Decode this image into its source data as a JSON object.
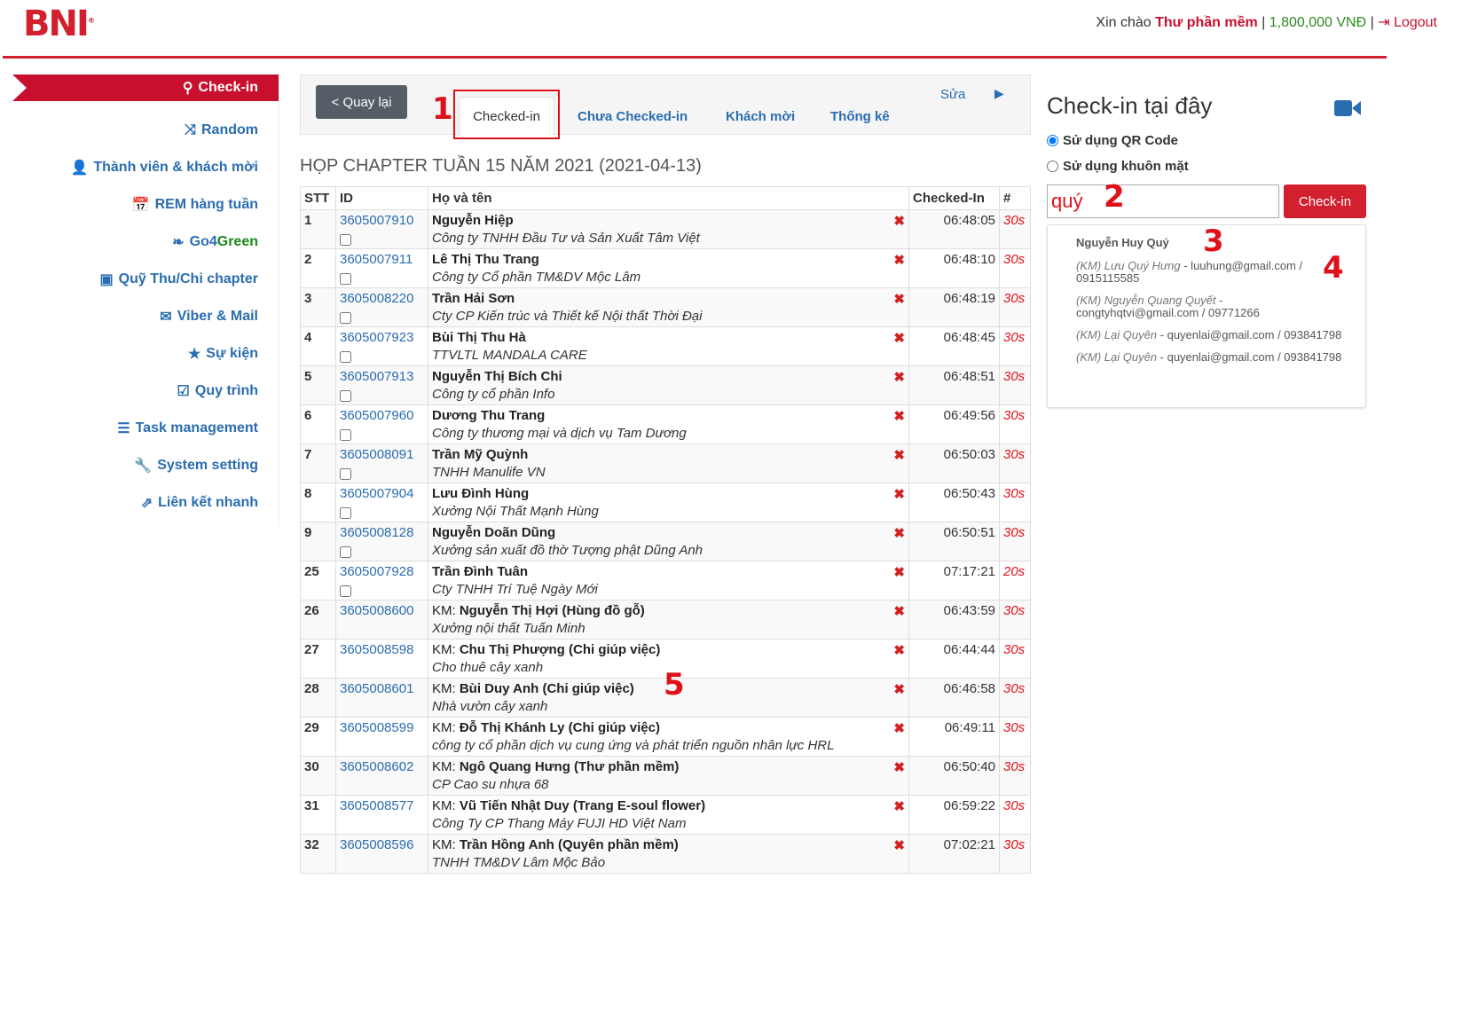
{
  "header": {
    "logo": "BNI",
    "greeting": "Xin chào ",
    "user": "Thư phần mềm",
    "balance": "1,800,000 VNĐ",
    "logout": "Logout"
  },
  "sidebar": {
    "items": [
      {
        "label": "Check-in",
        "icon": "map-marker-icon",
        "active": true
      },
      {
        "label": "Random",
        "icon": "shuffle-icon"
      },
      {
        "label": "Thành viên & khách mời",
        "icon": "user-icon"
      },
      {
        "label": "REM hàng tuần",
        "icon": "calendar-icon"
      },
      {
        "label": "Go4",
        "label2": "Green",
        "icon": "leaf-icon"
      },
      {
        "label": "Quỹ Thu/Chi chapter",
        "icon": "money-icon"
      },
      {
        "label": "Viber & Mail",
        "icon": "envelope-icon"
      },
      {
        "label": "Sự kiện",
        "icon": "star-icon"
      },
      {
        "label": "Quy trình",
        "icon": "check-square-icon"
      },
      {
        "label": "Task management",
        "icon": "tasks-icon"
      },
      {
        "label": "System setting",
        "icon": "wrench-icon"
      },
      {
        "label": "Liên kết nhanh",
        "icon": "external-link-icon"
      }
    ]
  },
  "toolbar": {
    "back": "< Quay lại",
    "tabs": [
      "Checked-in",
      "Chưa Checked-in",
      "Khách mời",
      "Thống kê"
    ],
    "edit": "Sửa"
  },
  "annotations": [
    "1",
    "2",
    "3",
    "4",
    "5"
  ],
  "meeting_title": "HỌP CHAPTER TUẦN 15 NĂM 2021 (2021-04-13)",
  "table": {
    "headers": [
      "STT",
      "ID",
      "Họ và tên",
      "Checked-In",
      "#"
    ],
    "rows": [
      {
        "stt": "1",
        "id": "3605007910",
        "name": "Nguyễn Hiệp",
        "company": "Công ty TNHH Đầu Tư và Sản Xuất Tâm Việt",
        "time": "06:48:05",
        "dur": "30s"
      },
      {
        "stt": "2",
        "id": "3605007911",
        "name": "Lê Thị Thu Trang",
        "company": "Công ty Cổ phần TM&DV Mộc Lâm",
        "time": "06:48:10",
        "dur": "30s"
      },
      {
        "stt": "3",
        "id": "3605008220",
        "name": "Trần Hải Sơn",
        "company": "Cty CP Kiến trúc và Thiết kế Nội thất Thời Đại",
        "time": "06:48:19",
        "dur": "30s"
      },
      {
        "stt": "4",
        "id": "3605007923",
        "name": "Bùi Thị Thu Hà",
        "company": "TTVLTL MANDALA CARE",
        "time": "06:48:45",
        "dur": "30s"
      },
      {
        "stt": "5",
        "id": "3605007913",
        "name": "Nguyễn Thị Bích Chi",
        "company": "Công ty cổ phần Info",
        "time": "06:48:51",
        "dur": "30s"
      },
      {
        "stt": "6",
        "id": "3605007960",
        "name": "Dương Thu Trang",
        "company": "Công ty thương mại và dịch vụ Tam Dương",
        "time": "06:49:56",
        "dur": "30s"
      },
      {
        "stt": "7",
        "id": "3605008091",
        "name": "Trần Mỹ Quỳnh",
        "company": "TNHH Manulife VN",
        "time": "06:50:03",
        "dur": "30s"
      },
      {
        "stt": "8",
        "id": "3605007904",
        "name": "Lưu Đình Hùng",
        "company": "Xưởng Nội Thất Mạnh Hùng",
        "time": "06:50:43",
        "dur": "30s"
      },
      {
        "stt": "9",
        "id": "3605008128",
        "name": "Nguyễn Doãn Dũng",
        "company": "Xưởng sản xuất đồ thờ Tượng phật Dũng Anh",
        "time": "06:50:51",
        "dur": "30s"
      },
      {
        "stt": "25",
        "id": "3605007928",
        "name": "Trần Đình Tuân",
        "company": "Cty TNHH Trí Tuệ Ngày Mới",
        "time": "07:17:21",
        "dur": "20s"
      },
      {
        "stt": "26",
        "id": "3605008600",
        "km": "KM: ",
        "name": "Nguyễn Thị Hợi (Hùng đồ gỗ)",
        "company": "Xưởng nội thất Tuấn Minh",
        "time": "06:43:59",
        "dur": "30s"
      },
      {
        "stt": "27",
        "id": "3605008598",
        "km": "KM: ",
        "name": "Chu Thị Phượng (Chi giúp việc)",
        "company": "Cho thuê cây xanh",
        "time": "06:44:44",
        "dur": "30s"
      },
      {
        "stt": "28",
        "id": "3605008601",
        "km": "KM: ",
        "name": "Bùi Duy Anh (Chi giúp việc)",
        "company": "Nhà vườn cây xanh",
        "time": "06:46:58",
        "dur": "30s"
      },
      {
        "stt": "29",
        "id": "3605008599",
        "km": "KM: ",
        "name": "Đỗ Thị Khánh Ly (Chi giúp việc)",
        "company": "công ty cổ phần dịch vụ cung ứng và phát triển nguồn nhân lực HRL",
        "time": "06:49:11",
        "dur": "30s"
      },
      {
        "stt": "30",
        "id": "3605008602",
        "km": "KM: ",
        "name": "Ngô Quang Hưng (Thư phần mềm)",
        "company": "CP Cao su nhựa 68",
        "time": "06:50:40",
        "dur": "30s"
      },
      {
        "stt": "31",
        "id": "3605008577",
        "km": "KM: ",
        "name": "Vũ Tiến Nhật Duy (Trang E-soul flower)",
        "company": "Công Ty CP Thang Máy FUJI HD Việt Nam",
        "time": "06:59:22",
        "dur": "30s"
      },
      {
        "stt": "32",
        "id": "3605008596",
        "km": "KM: ",
        "name": "Trần Hồng Anh (Quyên phần mềm)",
        "company": "TNHH TM&DV Lâm Mộc Bảo",
        "time": "07:02:21",
        "dur": "30s"
      }
    ]
  },
  "checkin": {
    "title": "Check-in tại đây",
    "opt_qr": "Sử dụng QR Code",
    "opt_face": "Sử dụng khuôn mặt",
    "search_value": "quý",
    "button": "Check-in",
    "suggestions": {
      "top": "Nguyễn Huy Quý",
      "items": [
        {
          "name": "(KM) Lưu Quý Hưng",
          "info": " - luuhung@gmail.com / 0915115585"
        },
        {
          "name": "(KM) Nguyễn Quang Quyết",
          "info": " - congtyhqtvi@gmail.com / 09771266"
        },
        {
          "name": "(KM) Lại Quyên",
          "info": " - quyenlai@gmail.com / 093841798"
        },
        {
          "name": "(KM) Lại Quyên",
          "info": " - quyenlai@gmail.com / 093841798"
        }
      ]
    }
  },
  "colors": {
    "brand": "#d2202f",
    "link": "#2a6db0"
  }
}
